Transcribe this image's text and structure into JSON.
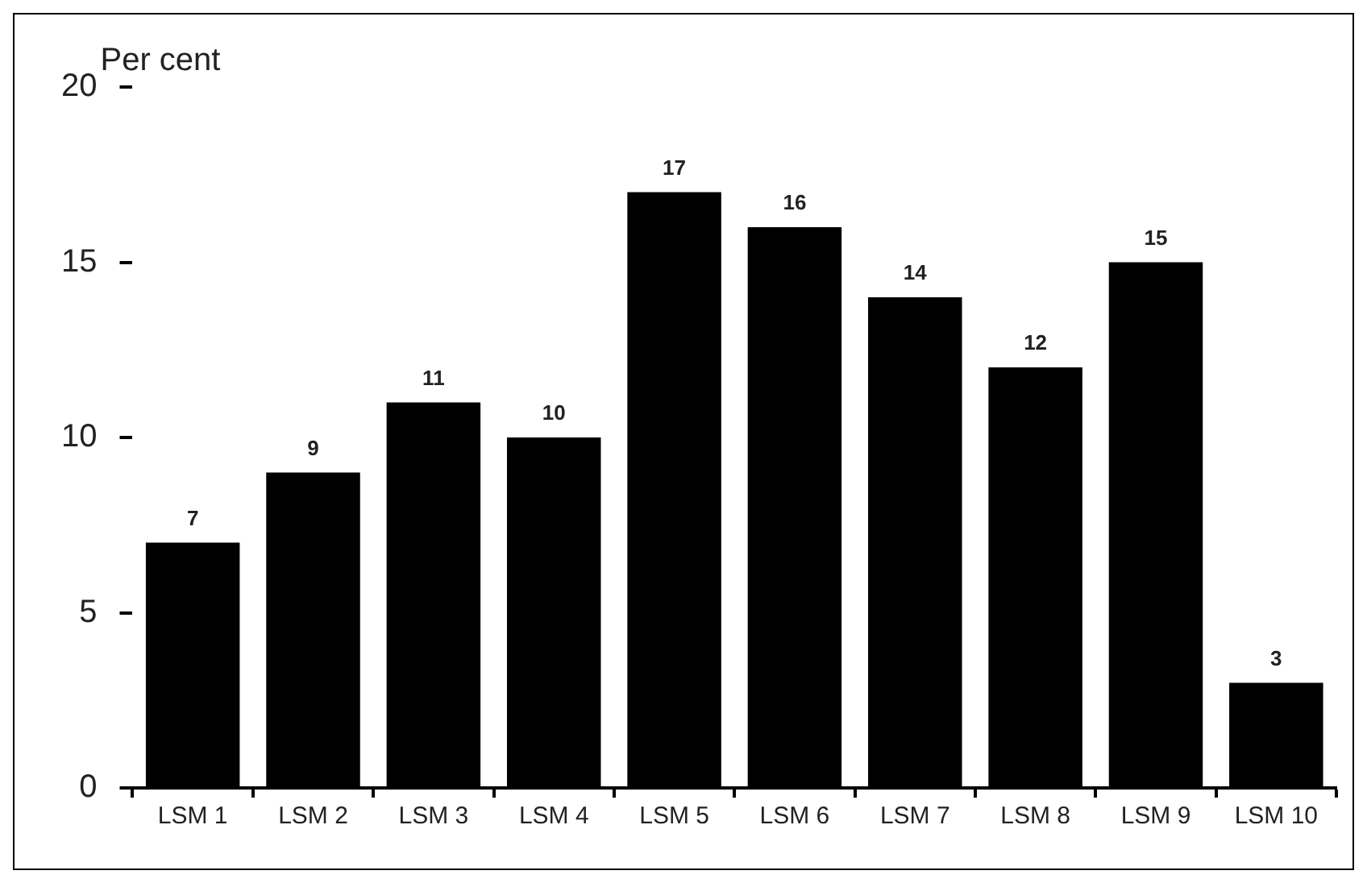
{
  "chart_data": {
    "type": "bar",
    "ylabel": "Per cent",
    "categories": [
      "LSM 1",
      "LSM 2",
      "LSM 3",
      "LSM 4",
      "LSM 5",
      "LSM 6",
      "LSM 7",
      "LSM 8",
      "LSM 9",
      "LSM 10"
    ],
    "values": [
      7,
      9,
      11,
      10,
      17,
      16,
      14,
      12,
      15,
      3
    ],
    "color": "#000000",
    "ylim": [
      0,
      20
    ],
    "yticks": [
      0,
      5,
      10,
      15,
      20
    ],
    "grid": false,
    "legend": false,
    "data_labels": true
  }
}
